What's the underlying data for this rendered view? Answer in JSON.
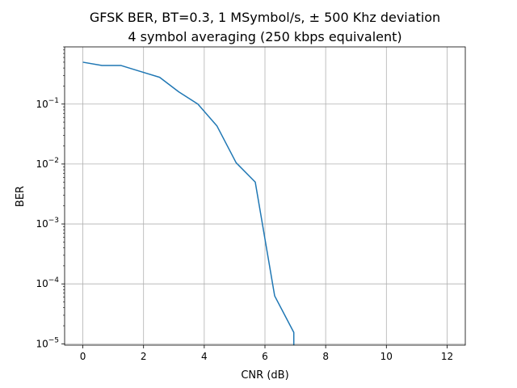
{
  "chart_data": {
    "type": "line",
    "title": "GFSK BER, BT=0.3, 1 MSymbol/s, ± 500 Khz deviation",
    "subtitle": "4 symbol averaging (250 kbps equivalent)",
    "xlabel": "CNR (dB)",
    "ylabel": "BER",
    "xlim": [
      -0.6,
      12.6
    ],
    "ylim": [
      9.5e-06,
      0.9
    ],
    "yscale": "log",
    "grid": true,
    "x_ticks": [
      0,
      2,
      4,
      6,
      8,
      10,
      12
    ],
    "x_tick_labels": [
      "0",
      "2",
      "4",
      "6",
      "8",
      "10",
      "12"
    ],
    "y_ticks": [
      1e-05,
      0.0001,
      0.001,
      0.01,
      0.1
    ],
    "y_tick_labels": [
      {
        "base": "10",
        "exp": "−5"
      },
      {
        "base": "10",
        "exp": "−4"
      },
      {
        "base": "10",
        "exp": "−3"
      },
      {
        "base": "10",
        "exp": "−2"
      },
      {
        "base": "10",
        "exp": "−1"
      }
    ],
    "series": [
      {
        "color": "#1f77b4",
        "x": [
          0.0,
          0.63,
          1.26,
          1.9,
          2.53,
          3.16,
          3.79,
          4.42,
          5.05,
          5.68,
          6.32,
          6.95,
          6.95
        ],
        "y": [
          0.5,
          0.44,
          0.44,
          0.35,
          0.28,
          0.16,
          0.1,
          0.043,
          0.0105,
          0.005,
          6.3e-05,
          1.55e-05,
          9.5e-06
        ]
      }
    ]
  }
}
